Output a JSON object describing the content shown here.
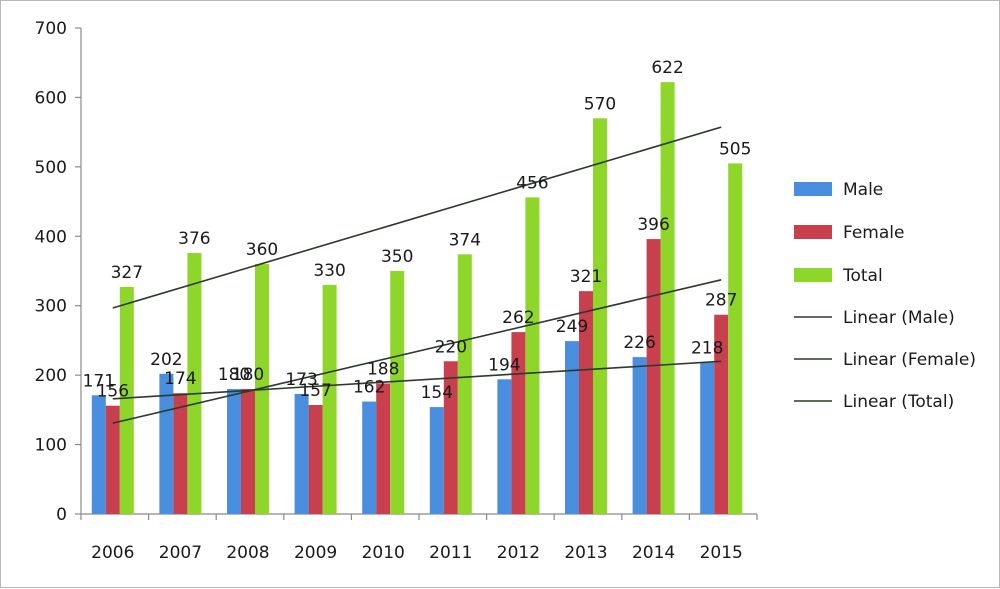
{
  "chart_data": {
    "type": "bar",
    "title": "",
    "xlabel": "",
    "ylabel": "",
    "ylim": [
      0,
      700
    ],
    "y_ticks": [
      0,
      100,
      200,
      300,
      400,
      500,
      600,
      700
    ],
    "grid": false,
    "legend_position": "right",
    "categories": [
      "2006",
      "2007",
      "2008",
      "2009",
      "2010",
      "2011",
      "2012",
      "2013",
      "2014",
      "2015"
    ],
    "series": [
      {
        "name": "Male",
        "color": "#4a8ee0",
        "values": [
          171,
          202,
          180,
          173,
          162,
          154,
          194,
          249,
          226,
          218
        ]
      },
      {
        "name": "Female",
        "color": "#c8404e",
        "values": [
          156,
          174,
          180,
          157,
          188,
          220,
          262,
          321,
          396,
          287
        ]
      },
      {
        "name": "Total",
        "color": "#8fd62a",
        "values": [
          327,
          376,
          360,
          330,
          350,
          374,
          456,
          570,
          622,
          505
        ]
      }
    ],
    "trendlines": [
      {
        "name": "Linear (Male)",
        "of": "Male",
        "color": "#2b3a2b"
      },
      {
        "name": "Linear (Female)",
        "of": "Female",
        "color": "#2b3a2b"
      },
      {
        "name": "Linear (Total)",
        "of": "Total",
        "color": "#2b3a2b"
      }
    ]
  }
}
